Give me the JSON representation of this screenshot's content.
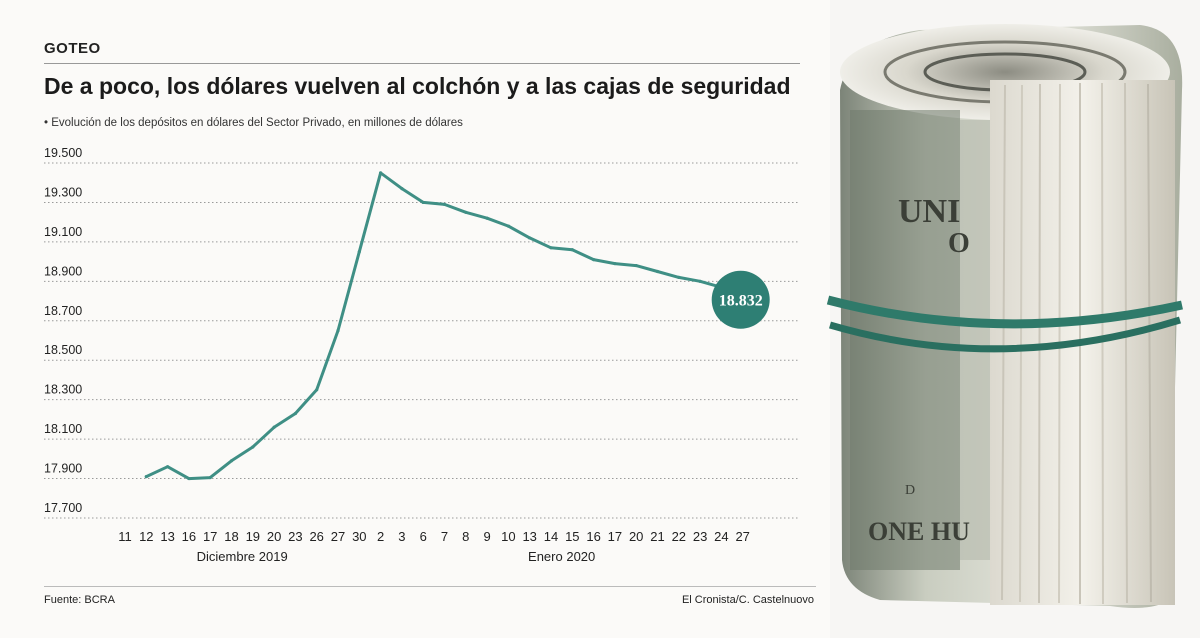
{
  "header": {
    "tag": "GOTEO",
    "title": "De a poco, los dólares vuelven al colchón y a las cajas de seguridad",
    "subtitle": "• Evolución de los depósitos en dólares del Sector Privado, en millones de dólares"
  },
  "footer": {
    "source": "Fuente: BCRA",
    "credit": "El Cronista/C. Castelnuovo"
  },
  "colors": {
    "line": "#3f8f85",
    "marker": "#2e7f74",
    "grid": "#9a9a9a",
    "text": "#222222"
  },
  "photo": {
    "banknote_lines": [
      "UNI",
      "O",
      "D",
      "ONE HU"
    ]
  },
  "chart_data": {
    "type": "line",
    "title": "De a poco, los dólares vuelven al colchón y a las cajas de seguridad",
    "subtitle": "Evolución de los depósitos en dólares del Sector Privado, en millones de dólares",
    "xlabel": "",
    "ylabel": "",
    "ylim": [
      17700,
      19500
    ],
    "yticks": [
      19500,
      19300,
      19100,
      18900,
      18700,
      18500,
      18300,
      18100,
      17900,
      17700
    ],
    "ytick_labels": [
      "19.500",
      "19.300",
      "19.100",
      "18.900",
      "18.700",
      "18.500",
      "18.300",
      "18.100",
      "17.900",
      "17.700"
    ],
    "grid": true,
    "categories": [
      "11",
      "12",
      "13",
      "16",
      "17",
      "18",
      "19",
      "20",
      "23",
      "26",
      "27",
      "30",
      "2",
      "3",
      "6",
      "7",
      "8",
      "9",
      "10",
      "13",
      "14",
      "15",
      "16",
      "17",
      "20",
      "21",
      "22",
      "23",
      "24",
      "27"
    ],
    "month_labels": [
      {
        "label": "Diciembre 2019",
        "from_index": 0,
        "to_index": 11
      },
      {
        "label": "Enero 2020",
        "from_index": 12,
        "to_index": 29
      }
    ],
    "series": [
      {
        "name": "Depósitos en dólares del Sector Privado",
        "values": [
          null,
          17910,
          17960,
          17900,
          17905,
          17990,
          18060,
          18160,
          18230,
          18350,
          18650,
          19050,
          19450,
          19370,
          19300,
          19290,
          19250,
          19220,
          19180,
          19120,
          19070,
          19060,
          19010,
          18990,
          18980,
          18950,
          18920,
          18900,
          18870,
          18832
        ]
      }
    ],
    "annotations": [
      {
        "label": "18.832",
        "index": 29,
        "value": 18832
      }
    ]
  }
}
